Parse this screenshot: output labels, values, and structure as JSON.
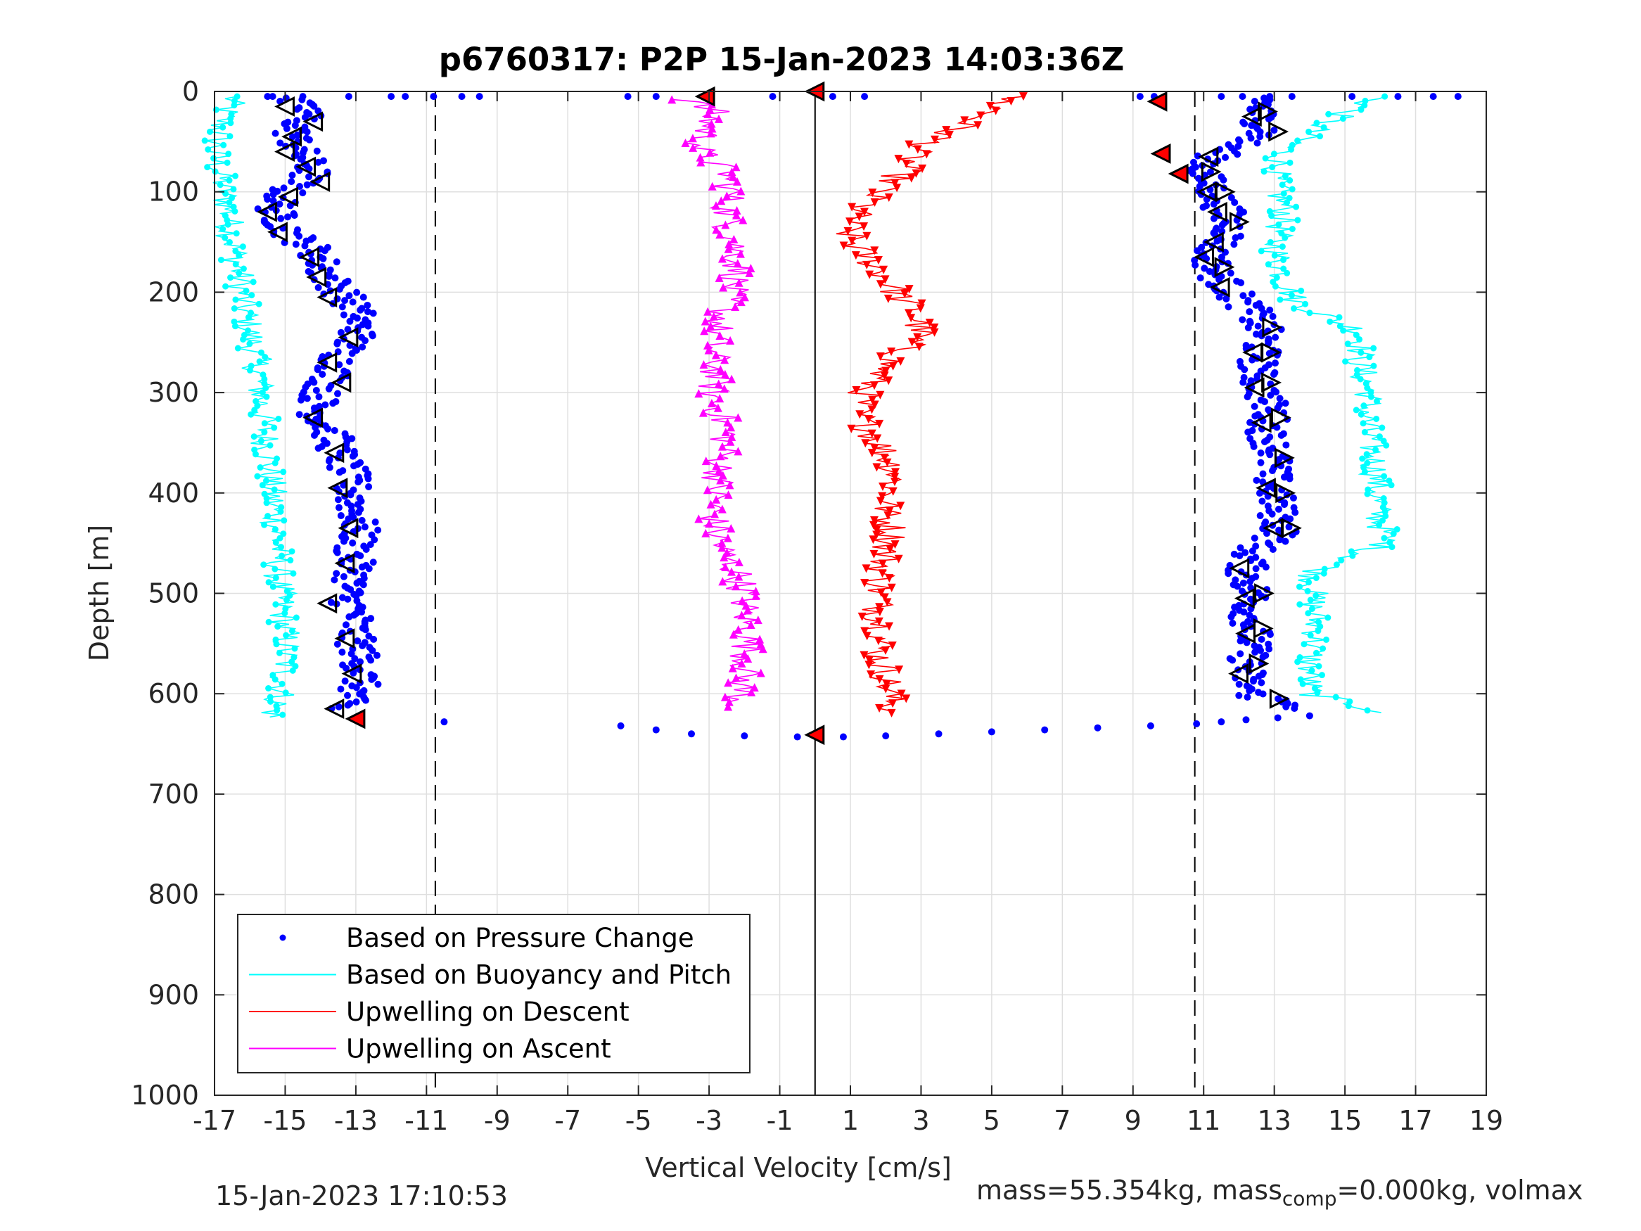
{
  "chart_data": {
    "type": "scatter",
    "title": "p6760317: P2P 15-Jan-2023 14:03:36Z",
    "xlabel": "Vertical Velocity [cm/s]",
    "ylabel": "Depth [m]",
    "xlim": [
      -17,
      19
    ],
    "ylim": [
      0,
      1000
    ],
    "y_reversed": true,
    "grid": true,
    "xticks": [
      -17,
      -15,
      -13,
      -11,
      -9,
      -7,
      -5,
      -3,
      -1,
      1,
      3,
      5,
      7,
      9,
      11,
      13,
      15,
      17,
      19
    ],
    "yticks": [
      0,
      100,
      200,
      300,
      400,
      500,
      600,
      700,
      800,
      900,
      1000
    ],
    "reference_lines": {
      "solid_x": 0,
      "dashed_x": [
        -10.75,
        10.75
      ]
    },
    "legend": {
      "placement": "bottom-left",
      "entries": [
        {
          "label": "Based on Pressure Change",
          "color": "#0000ff",
          "marker": "dot"
        },
        {
          "label": "Based on Buoyancy and Pitch",
          "color": "#00ffff",
          "marker": "line"
        },
        {
          "label": "Upwelling on Descent",
          "color": "#ff0000",
          "marker": "line"
        },
        {
          "label": "Upwelling on Ascent",
          "color": "#ff00ff",
          "marker": "line"
        }
      ]
    },
    "series": [
      {
        "key": "pressure_descent",
        "color": "#0000ff",
        "profile": {
          "depth": [
            5,
            20,
            40,
            60,
            80,
            100,
            120,
            140,
            160,
            180,
            200,
            220,
            240,
            260,
            280,
            300,
            320,
            340,
            360,
            380,
            400,
            420,
            440,
            460,
            480,
            500,
            520,
            540,
            560,
            580,
            600,
            615
          ],
          "velocity": [
            -15.2,
            -14.3,
            -14.8,
            -14.6,
            -14.2,
            -15.0,
            -15.3,
            -14.9,
            -14.1,
            -13.9,
            -13.4,
            -13.0,
            -12.9,
            -13.4,
            -13.6,
            -14.0,
            -14.1,
            -13.7,
            -13.5,
            -13.2,
            -13.1,
            -13.0,
            -12.9,
            -13.1,
            -13.0,
            -13.3,
            -13.0,
            -13.1,
            -12.9,
            -12.8,
            -13.0,
            -13.6
          ]
        }
      },
      {
        "key": "buoyancy_descent",
        "color": "#00ffff",
        "profile": {
          "depth": [
            5,
            30,
            60,
            90,
            120,
            150,
            180,
            210,
            240,
            270,
            300,
            330,
            360,
            390,
            420,
            450,
            480,
            510,
            540,
            570,
            600,
            625
          ],
          "velocity": [
            -16.5,
            -16.8,
            -17.0,
            -16.8,
            -16.6,
            -16.5,
            -16.3,
            -16.2,
            -16.0,
            -15.8,
            -15.7,
            -15.6,
            -15.5,
            -15.4,
            -15.3,
            -15.2,
            -15.2,
            -15.1,
            -15.0,
            -15.0,
            -15.1,
            -15.4
          ]
        }
      },
      {
        "key": "pressure_ascent",
        "color": "#0000ff",
        "profile": {
          "depth": [
            5,
            20,
            40,
            60,
            80,
            100,
            120,
            140,
            160,
            180,
            200,
            220,
            240,
            260,
            280,
            300,
            320,
            340,
            360,
            380,
            400,
            420,
            440,
            460,
            480,
            500,
            520,
            540,
            560,
            580,
            600,
            615
          ],
          "velocity": [
            12.8,
            12.5,
            12.8,
            11.5,
            10.9,
            11.3,
            11.6,
            11.8,
            11.2,
            11.3,
            11.8,
            12.4,
            12.7,
            12.6,
            12.5,
            12.7,
            12.9,
            12.8,
            13.0,
            12.9,
            13.0,
            13.1,
            13.2,
            12.3,
            12.2,
            12.4,
            12.3,
            12.4,
            12.3,
            12.2,
            12.3,
            13.9
          ]
        }
      },
      {
        "key": "buoyancy_ascent",
        "color": "#00ffff",
        "profile": {
          "depth": [
            5,
            30,
            60,
            90,
            120,
            150,
            180,
            210,
            240,
            270,
            300,
            330,
            360,
            390,
            420,
            450,
            480,
            510,
            540,
            570,
            600,
            620
          ],
          "velocity": [
            16.0,
            14.5,
            13.2,
            13.0,
            13.3,
            13.0,
            13.2,
            13.6,
            15.5,
            15.4,
            15.7,
            15.6,
            15.8,
            15.9,
            15.9,
            16.2,
            14.1,
            14.1,
            14.2,
            14.0,
            14.0,
            16.3
          ]
        }
      },
      {
        "key": "upwelling_descent",
        "color": "#ff0000",
        "profile": {
          "depth": [
            5,
            20,
            40,
            60,
            80,
            100,
            120,
            140,
            160,
            180,
            200,
            220,
            240,
            260,
            280,
            300,
            320,
            340,
            360,
            380,
            400,
            420,
            440,
            460,
            480,
            500,
            520,
            540,
            560,
            580,
            600,
            620
          ],
          "velocity": [
            5.5,
            5.0,
            3.8,
            2.8,
            2.5,
            1.8,
            1.2,
            0.9,
            1.3,
            1.9,
            2.3,
            2.8,
            3.0,
            2.4,
            1.8,
            1.4,
            1.2,
            1.6,
            2.0,
            2.3,
            2.1,
            2.0,
            2.2,
            2.0,
            1.9,
            1.8,
            1.8,
            1.9,
            1.8,
            2.0,
            2.1,
            2.2
          ]
        }
      },
      {
        "key": "upwelling_ascent",
        "color": "#ff00ff",
        "profile": {
          "depth": [
            8,
            20,
            40,
            60,
            80,
            100,
            120,
            140,
            160,
            180,
            200,
            220,
            240,
            260,
            280,
            300,
            320,
            340,
            360,
            380,
            400,
            420,
            440,
            460,
            480,
            500,
            520,
            540,
            560,
            580,
            600,
            615
          ],
          "velocity": [
            -3.6,
            -2.9,
            -3.1,
            -3.3,
            -2.5,
            -2.4,
            -2.5,
            -2.4,
            -2.2,
            -2.2,
            -2.4,
            -2.6,
            -2.8,
            -2.9,
            -2.8,
            -2.9,
            -2.7,
            -2.5,
            -2.6,
            -2.7,
            -2.8,
            -2.9,
            -2.8,
            -2.6,
            -2.2,
            -2.0,
            -2.0,
            -1.9,
            -1.9,
            -2.0,
            -2.1,
            -2.2
          ]
        }
      },
      {
        "key": "surface_and_bottom_points",
        "color": "#0000ff",
        "points": {
          "depth": [
            5,
            5,
            5,
            5,
            5,
            5,
            5,
            5,
            5,
            5,
            5,
            5,
            5,
            5,
            5,
            5,
            5,
            5,
            5,
            5,
            5,
            5,
            628,
            632,
            636,
            640,
            642,
            643,
            643,
            642,
            640,
            638,
            636,
            634,
            632,
            630,
            628,
            626,
            624,
            622
          ],
          "velocity": [
            -15.5,
            -14.5,
            -13.2,
            -12.0,
            -11.6,
            -10.8,
            -10.0,
            -9.5,
            -5.3,
            -4.5,
            -1.2,
            0.5,
            1.4,
            9.2,
            9.6,
            11.5,
            12.1,
            13.5,
            15.2,
            16.5,
            17.5,
            18.2,
            -10.5,
            -5.5,
            -4.5,
            -3.5,
            -2.0,
            -0.5,
            0.8,
            2.0,
            3.5,
            5.0,
            6.5,
            8.0,
            9.5,
            10.8,
            11.5,
            12.2,
            13.1,
            14.0
          ]
        }
      }
    ],
    "markers": {
      "open_left_triangles_depth": [
        15,
        30,
        45,
        60,
        75,
        90,
        105,
        120,
        140,
        165,
        185,
        205,
        245,
        270,
        290,
        325,
        360,
        395,
        435,
        470,
        510,
        545,
        580,
        615
      ],
      "open_left_triangles_velocity": [
        -15.0,
        -14.2,
        -14.8,
        -15.0,
        -14.4,
        -14.0,
        -14.9,
        -15.5,
        -15.2,
        -14.3,
        -14.1,
        -13.8,
        -13.2,
        -13.8,
        -13.4,
        -14.2,
        -13.6,
        -13.5,
        -13.2,
        -13.3,
        -13.8,
        -13.3,
        -13.1,
        -13.6
      ],
      "open_right_triangles_depth": [
        20,
        40,
        80,
        100,
        130,
        175,
        235,
        260,
        290,
        325,
        365,
        400,
        435,
        500,
        535,
        570,
        605
      ],
      "open_left_triangles_ascent_depth": [
        25,
        65,
        100,
        120,
        150,
        165,
        195,
        260,
        295,
        330,
        395,
        435,
        475,
        505,
        540,
        580
      ],
      "filled_red_markers": [
        {
          "depth": 5,
          "velocity": -3.1
        },
        {
          "depth": 0,
          "velocity": 0.0
        },
        {
          "depth": 10,
          "velocity": 9.7
        },
        {
          "depth": 62,
          "velocity": 9.8
        },
        {
          "depth": 82,
          "velocity": 10.3
        },
        {
          "depth": 625,
          "velocity": -13.0
        },
        {
          "depth": 641,
          "velocity": 0.0
        }
      ]
    }
  },
  "footer": {
    "timestamp": "15-Jan-2023 17:10:53",
    "mass_text_a": "mass=55.354kg, mass",
    "mass_sub": "comp",
    "mass_text_b": "=0.000kg, volmax"
  }
}
